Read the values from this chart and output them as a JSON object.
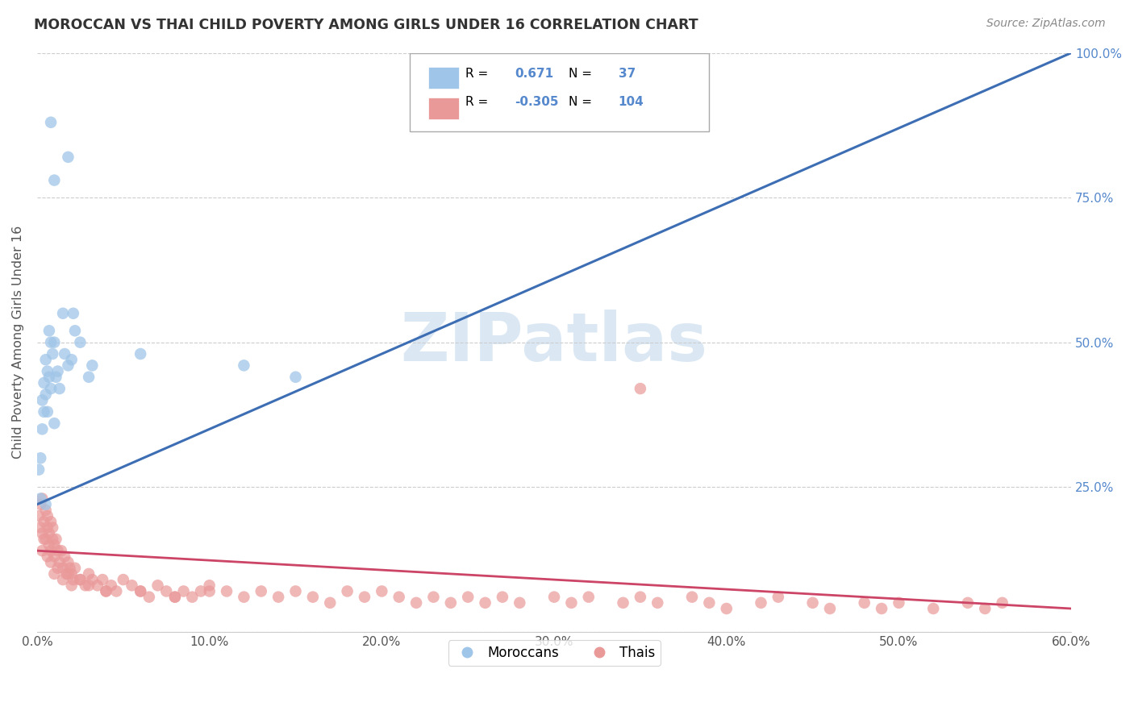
{
  "title": "MOROCCAN VS THAI CHILD POVERTY AMONG GIRLS UNDER 16 CORRELATION CHART",
  "source": "Source: ZipAtlas.com",
  "ylabel": "Child Poverty Among Girls Under 16",
  "xlim": [
    0.0,
    0.6
  ],
  "ylim": [
    0.0,
    1.0
  ],
  "xticks": [
    0.0,
    0.1,
    0.2,
    0.3,
    0.4,
    0.5,
    0.6
  ],
  "xticklabels": [
    "0.0%",
    "10.0%",
    "20.0%",
    "30.0%",
    "40.0%",
    "50.0%",
    "60.0%"
  ],
  "yticks": [
    0.0,
    0.25,
    0.5,
    0.75,
    1.0
  ],
  "yticklabels": [
    "",
    "25.0%",
    "50.0%",
    "75.0%",
    "100.0%"
  ],
  "moroccan_R": 0.671,
  "moroccan_N": 37,
  "thai_R": -0.305,
  "thai_N": 104,
  "blue_color": "#9fc5e8",
  "pink_color": "#ea9999",
  "blue_line_color": "#3d6eb4",
  "pink_line_color": "#cc4466",
  "watermark": "ZIPatlas",
  "background_color": "#ffffff",
  "grid_color": "#cccccc",
  "moroccan_points_x": [
    0.001,
    0.002,
    0.002,
    0.003,
    0.003,
    0.004,
    0.004,
    0.005,
    0.005,
    0.005,
    0.006,
    0.006,
    0.007,
    0.007,
    0.008,
    0.008,
    0.009,
    0.01,
    0.01,
    0.011,
    0.012,
    0.013,
    0.015,
    0.016,
    0.018,
    0.02,
    0.021,
    0.022,
    0.025,
    0.03,
    0.032,
    0.018,
    0.008,
    0.01,
    0.06,
    0.12,
    0.15
  ],
  "moroccan_points_y": [
    0.28,
    0.23,
    0.3,
    0.35,
    0.4,
    0.38,
    0.43,
    0.41,
    0.47,
    0.22,
    0.45,
    0.38,
    0.52,
    0.44,
    0.5,
    0.42,
    0.48,
    0.5,
    0.36,
    0.44,
    0.45,
    0.42,
    0.55,
    0.48,
    0.46,
    0.47,
    0.55,
    0.52,
    0.5,
    0.44,
    0.46,
    0.82,
    0.88,
    0.78,
    0.48,
    0.46,
    0.44
  ],
  "thai_points_x": [
    0.001,
    0.002,
    0.002,
    0.003,
    0.003,
    0.004,
    0.005,
    0.005,
    0.006,
    0.006,
    0.007,
    0.007,
    0.008,
    0.008,
    0.009,
    0.009,
    0.01,
    0.01,
    0.011,
    0.012,
    0.013,
    0.014,
    0.015,
    0.016,
    0.017,
    0.018,
    0.019,
    0.02,
    0.021,
    0.022,
    0.025,
    0.028,
    0.03,
    0.032,
    0.035,
    0.038,
    0.04,
    0.043,
    0.046,
    0.05,
    0.055,
    0.06,
    0.065,
    0.07,
    0.075,
    0.08,
    0.085,
    0.09,
    0.095,
    0.1,
    0.11,
    0.12,
    0.13,
    0.14,
    0.15,
    0.16,
    0.17,
    0.18,
    0.19,
    0.2,
    0.21,
    0.22,
    0.23,
    0.24,
    0.25,
    0.26,
    0.27,
    0.28,
    0.3,
    0.31,
    0.32,
    0.34,
    0.35,
    0.36,
    0.38,
    0.39,
    0.4,
    0.42,
    0.43,
    0.45,
    0.46,
    0.48,
    0.49,
    0.5,
    0.52,
    0.54,
    0.55,
    0.56,
    0.003,
    0.004,
    0.006,
    0.008,
    0.01,
    0.012,
    0.015,
    0.018,
    0.02,
    0.025,
    0.03,
    0.04,
    0.06,
    0.08,
    0.1,
    0.35
  ],
  "thai_points_y": [
    0.2,
    0.22,
    0.18,
    0.17,
    0.23,
    0.19,
    0.21,
    0.16,
    0.18,
    0.2,
    0.15,
    0.17,
    0.14,
    0.19,
    0.16,
    0.18,
    0.15,
    0.13,
    0.16,
    0.14,
    0.12,
    0.14,
    0.11,
    0.13,
    0.1,
    0.12,
    0.11,
    0.1,
    0.09,
    0.11,
    0.09,
    0.08,
    0.1,
    0.09,
    0.08,
    0.09,
    0.07,
    0.08,
    0.07,
    0.09,
    0.08,
    0.07,
    0.06,
    0.08,
    0.07,
    0.06,
    0.07,
    0.06,
    0.07,
    0.08,
    0.07,
    0.06,
    0.07,
    0.06,
    0.07,
    0.06,
    0.05,
    0.07,
    0.06,
    0.07,
    0.06,
    0.05,
    0.06,
    0.05,
    0.06,
    0.05,
    0.06,
    0.05,
    0.06,
    0.05,
    0.06,
    0.05,
    0.06,
    0.05,
    0.06,
    0.05,
    0.04,
    0.05,
    0.06,
    0.05,
    0.04,
    0.05,
    0.04,
    0.05,
    0.04,
    0.05,
    0.04,
    0.05,
    0.14,
    0.16,
    0.13,
    0.12,
    0.1,
    0.11,
    0.09,
    0.1,
    0.08,
    0.09,
    0.08,
    0.07,
    0.07,
    0.06,
    0.07,
    0.42
  ],
  "blue_trend_x0": 0.0,
  "blue_trend_y0": 0.22,
  "blue_trend_x1": 0.6,
  "blue_trend_y1": 1.0,
  "pink_trend_x0": 0.0,
  "pink_trend_y0": 0.14,
  "pink_trend_x1": 0.6,
  "pink_trend_y1": 0.04
}
